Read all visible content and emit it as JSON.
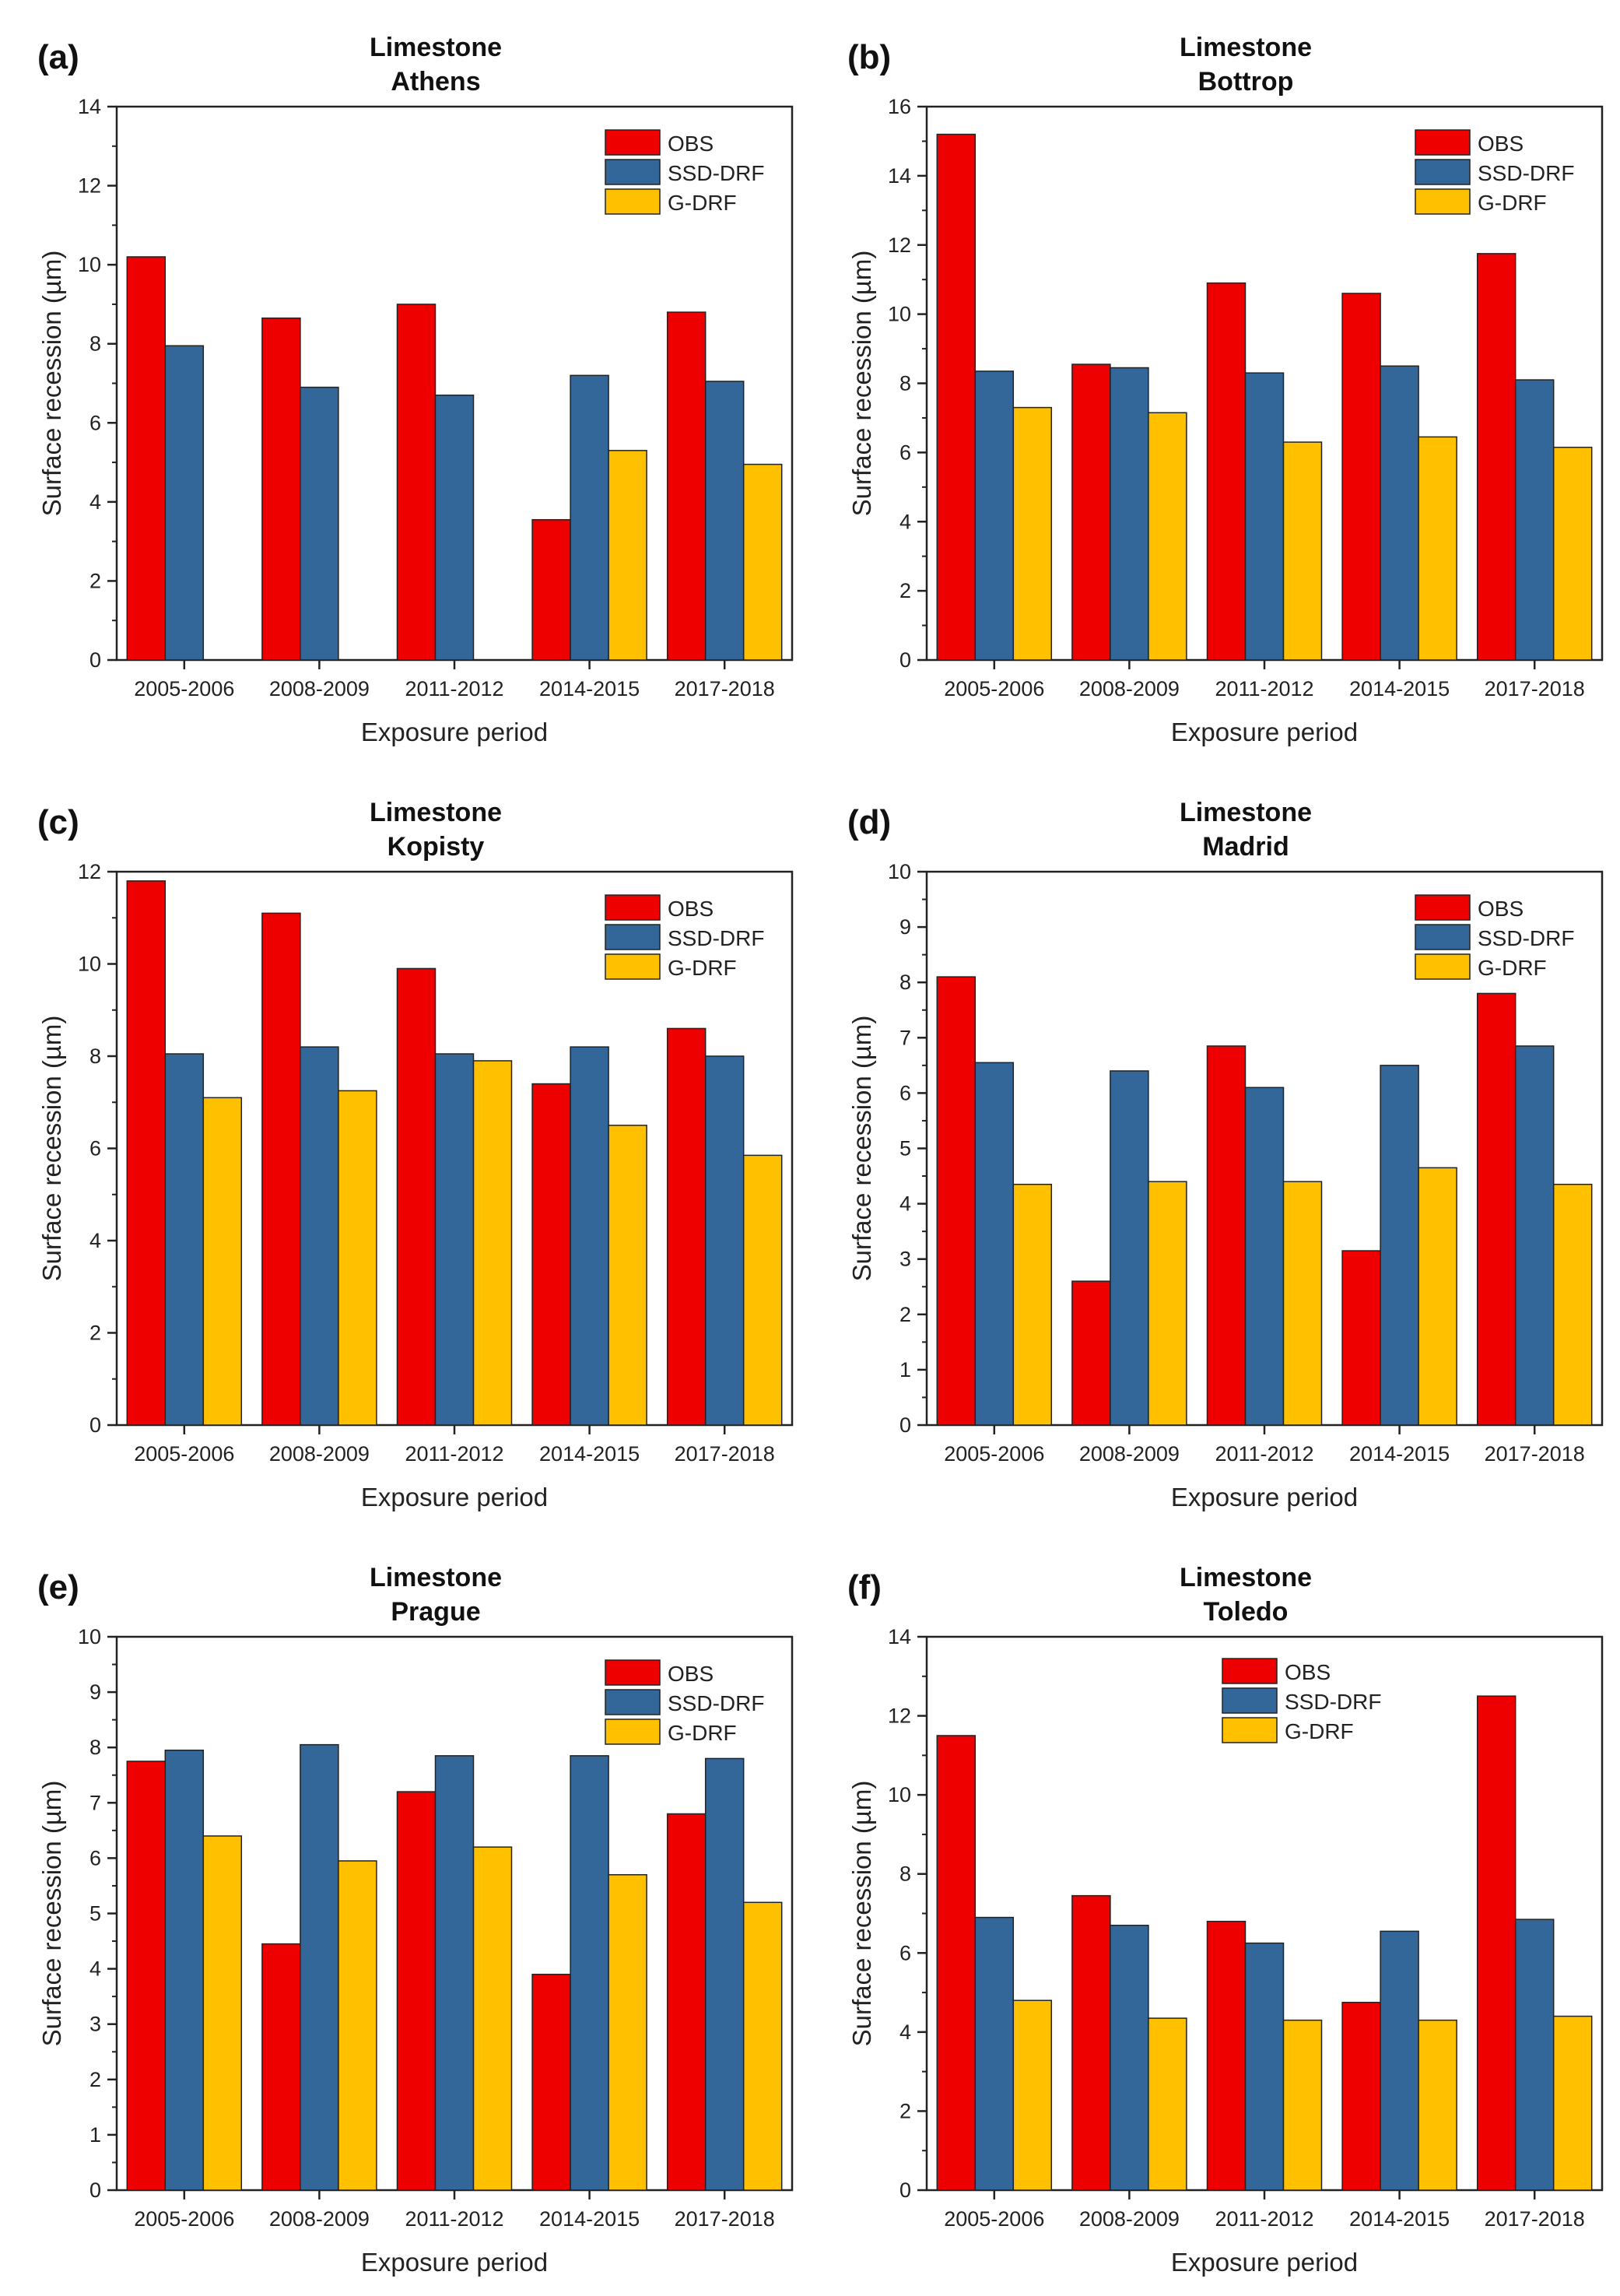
{
  "figure": {
    "colors": {
      "OBS": "#ee0000",
      "SSD-DRF": "#336699",
      "G-DRF": "#ffc000"
    }
  },
  "chart_data": [
    {
      "type": "bar",
      "panel_label": "(a)",
      "title": "Limestone",
      "subtitle": "Athens",
      "xlabel": "Exposure period",
      "ylabel": "Surface recession (µm)",
      "categories": [
        "2005-2006",
        "2008-2009",
        "2011-2012",
        "2014-2015",
        "2017-2018"
      ],
      "ylim": [
        0,
        14
      ],
      "yticks": [
        "0",
        "2",
        "4",
        "6",
        "8",
        "10",
        "12",
        "14"
      ],
      "legend_position": "top-right",
      "series": [
        {
          "name": "OBS",
          "values": [
            10.2,
            8.65,
            9.0,
            3.55,
            8.8
          ]
        },
        {
          "name": "SSD-DRF",
          "values": [
            7.95,
            6.9,
            6.7,
            7.2,
            7.05
          ]
        },
        {
          "name": "G-DRF",
          "values": [
            null,
            null,
            null,
            5.3,
            4.95
          ]
        }
      ]
    },
    {
      "type": "bar",
      "panel_label": "(b)",
      "title": "Limestone",
      "subtitle": "Bottrop",
      "xlabel": "Exposure period",
      "ylabel": "Surface recession (µm)",
      "categories": [
        "2005-2006",
        "2008-2009",
        "2011-2012",
        "2014-2015",
        "2017-2018"
      ],
      "ylim": [
        0,
        16
      ],
      "yticks": [
        "0",
        "2",
        "4",
        "6",
        "8",
        "10",
        "12",
        "14",
        "16"
      ],
      "legend_position": "top-right",
      "series": [
        {
          "name": "OBS",
          "values": [
            15.2,
            8.55,
            10.9,
            10.6,
            11.75
          ]
        },
        {
          "name": "SSD-DRF",
          "values": [
            8.35,
            8.45,
            8.3,
            8.5,
            8.1
          ]
        },
        {
          "name": "G-DRF",
          "values": [
            7.3,
            7.15,
            6.3,
            6.45,
            6.15
          ]
        }
      ]
    },
    {
      "type": "bar",
      "panel_label": "(c)",
      "title": "Limestone",
      "subtitle": "Kopisty",
      "xlabel": "Exposure period",
      "ylabel": "Surface recession (µm)",
      "categories": [
        "2005-2006",
        "2008-2009",
        "2011-2012",
        "2014-2015",
        "2017-2018"
      ],
      "ylim": [
        0,
        12
      ],
      "yticks": [
        "0",
        "2",
        "4",
        "6",
        "8",
        "10",
        "12"
      ],
      "legend_position": "top-right",
      "series": [
        {
          "name": "OBS",
          "values": [
            11.8,
            11.1,
            9.9,
            7.4,
            8.6
          ]
        },
        {
          "name": "SSD-DRF",
          "values": [
            8.05,
            8.2,
            8.05,
            8.2,
            8.0
          ]
        },
        {
          "name": "G-DRF",
          "values": [
            7.1,
            7.25,
            7.9,
            6.5,
            5.85
          ]
        }
      ]
    },
    {
      "type": "bar",
      "panel_label": "(d)",
      "title": "Limestone",
      "subtitle": "Madrid",
      "xlabel": "Exposure period",
      "ylabel": "Surface recession (µm)",
      "categories": [
        "2005-2006",
        "2008-2009",
        "2011-2012",
        "2014-2015",
        "2017-2018"
      ],
      "ylim": [
        0,
        10
      ],
      "yticks": [
        "0",
        "1",
        "2",
        "3",
        "4",
        "5",
        "6",
        "7",
        "8",
        "9",
        "10"
      ],
      "legend_position": "top-right",
      "series": [
        {
          "name": "OBS",
          "values": [
            8.1,
            2.6,
            6.85,
            3.15,
            7.8
          ]
        },
        {
          "name": "SSD-DRF",
          "values": [
            6.55,
            6.4,
            6.1,
            6.5,
            6.85
          ]
        },
        {
          "name": "G-DRF",
          "values": [
            4.35,
            4.4,
            4.4,
            4.65,
            4.35
          ]
        }
      ]
    },
    {
      "type": "bar",
      "panel_label": "(e)",
      "title": "Limestone",
      "subtitle": "Prague",
      "xlabel": "Exposure period",
      "ylabel": "Surface recession (µm)",
      "categories": [
        "2005-2006",
        "2008-2009",
        "2011-2012",
        "2014-2015",
        "2017-2018"
      ],
      "ylim": [
        0,
        10
      ],
      "yticks": [
        "0",
        "1",
        "2",
        "3",
        "4",
        "5",
        "6",
        "7",
        "8",
        "9",
        "10"
      ],
      "legend_position": "top-right",
      "series": [
        {
          "name": "OBS",
          "values": [
            7.75,
            4.45,
            7.2,
            3.9,
            6.8
          ]
        },
        {
          "name": "SSD-DRF",
          "values": [
            7.95,
            8.05,
            7.85,
            7.85,
            7.8
          ]
        },
        {
          "name": "G-DRF",
          "values": [
            6.4,
            5.95,
            6.2,
            5.7,
            5.2
          ]
        }
      ]
    },
    {
      "type": "bar",
      "panel_label": "(f)",
      "title": "Limestone",
      "subtitle": "Toledo",
      "xlabel": "Exposure period",
      "ylabel": "Surface recession (µm)",
      "categories": [
        "2005-2006",
        "2008-2009",
        "2011-2012",
        "2014-2015",
        "2017-2018"
      ],
      "ylim": [
        0,
        14
      ],
      "yticks": [
        "0",
        "2",
        "4",
        "6",
        "8",
        "10",
        "12",
        "14"
      ],
      "legend_position": "top-center",
      "series": [
        {
          "name": "OBS",
          "values": [
            11.5,
            7.45,
            6.8,
            4.75,
            12.5
          ]
        },
        {
          "name": "SSD-DRF",
          "values": [
            6.9,
            6.7,
            6.25,
            6.55,
            6.85
          ]
        },
        {
          "name": "G-DRF",
          "values": [
            4.8,
            4.35,
            4.3,
            4.3,
            4.4
          ]
        }
      ]
    }
  ]
}
